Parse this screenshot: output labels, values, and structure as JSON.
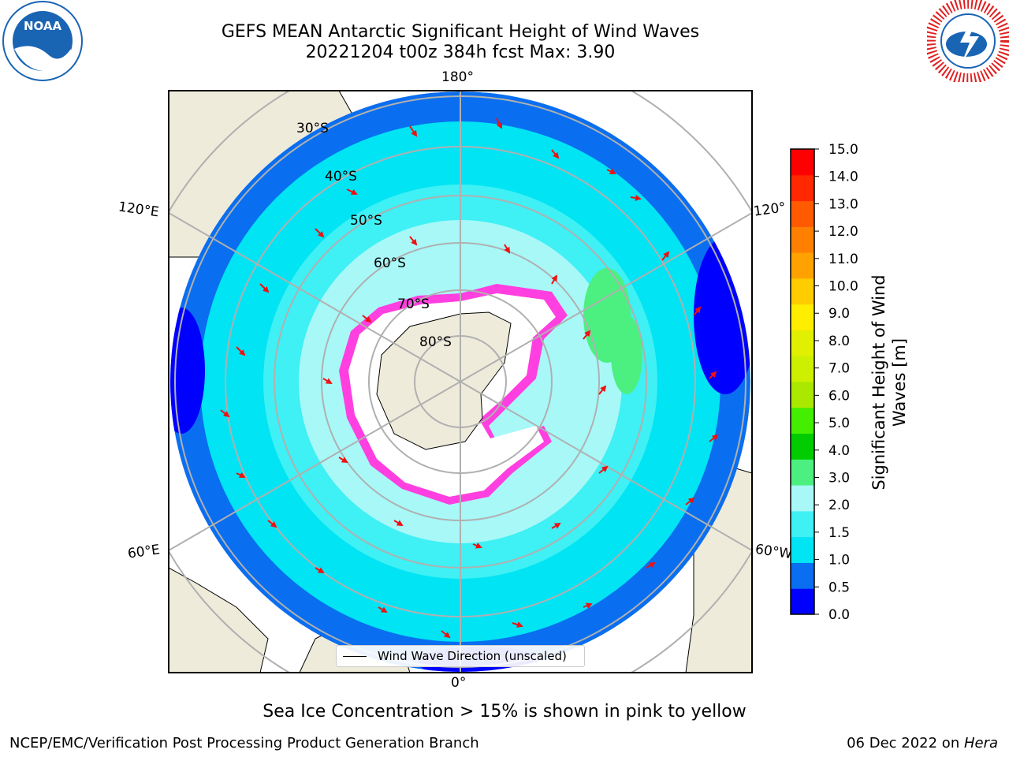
{
  "header": {
    "title_line1": "GEFS MEAN Antarctic Significant Height of Wind Waves",
    "title_line2": "20221204 t00z 384h fcst   Max: 3.90"
  },
  "logos": {
    "noaa": {
      "text": "NOAA",
      "icon": "noaa-logo-icon",
      "color": "#1a64b4"
    },
    "nws": {
      "icon": "nws-logo-icon",
      "color": "#e02020"
    }
  },
  "map": {
    "projection": "south-polar-stereographic",
    "longitude_labels": {
      "top": "180°",
      "bottom": "0°",
      "left_upper": "120°E",
      "left_lower": "60°E",
      "right_upper": "120°",
      "right_lower": "60°W"
    },
    "latitude_labels": [
      "30°S",
      "40°S",
      "50°S",
      "60°S",
      "70°S",
      "80°S"
    ],
    "colors": {
      "land": "#efebdb",
      "ice": "#ffffff",
      "ice_edge": "#ff3fe0",
      "arrows": "#ee1111",
      "grid": "#b0b0b0"
    },
    "legend": {
      "label": "Wind Wave Direction (unscaled)"
    }
  },
  "colorbar": {
    "title": "Significant Height of Wind Waves [m]",
    "ticks": [
      "15.0",
      "14.0",
      "13.0",
      "12.0",
      "11.0",
      "10.0",
      "9.0",
      "8.0",
      "7.0",
      "6.0",
      "5.0",
      "4.0",
      "3.0",
      "2.0",
      "1.5",
      "1.0",
      "0.5",
      "0.0"
    ],
    "colors": [
      "#0000ff",
      "#0a6ef0",
      "#00e4f4",
      "#3ff0f4",
      "#a8f8f8",
      "#4cf080",
      "#00cc00",
      "#44ee00",
      "#aae800",
      "#ccf000",
      "#e0f000",
      "#ffee00",
      "#ffcc00",
      "#ffa200",
      "#ff8000",
      "#ff5a00",
      "#ff2800",
      "#ff0000"
    ]
  },
  "footer": {
    "caption": "Sea Ice Concentration > 15% is shown in pink to yellow",
    "credit": "NCEP/EMC/Verification Post Processing Product Generation Branch",
    "date": "06 Dec 2022 on ",
    "machine": "Hera"
  }
}
